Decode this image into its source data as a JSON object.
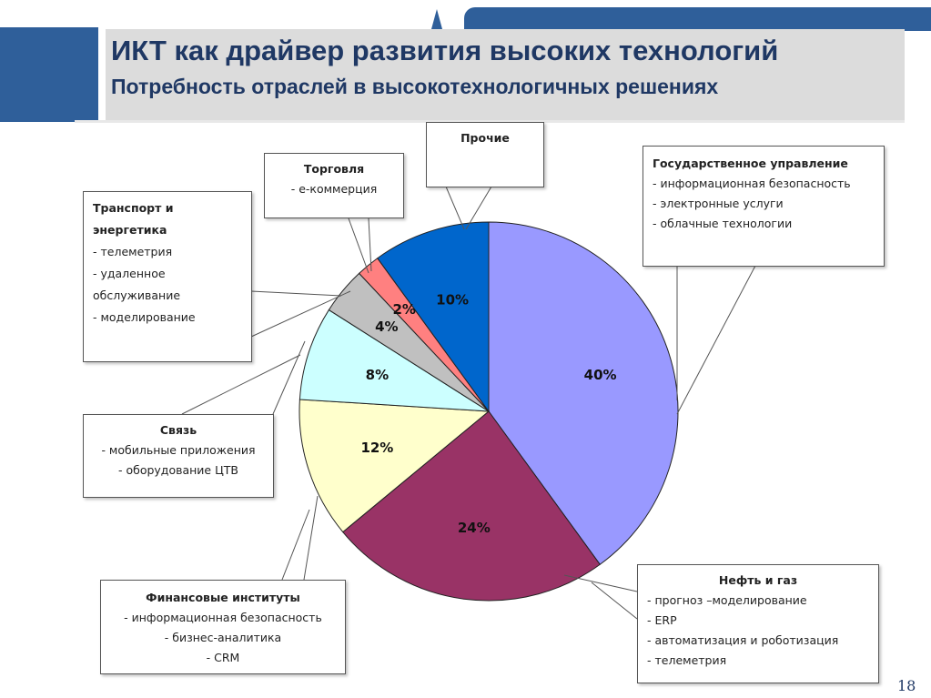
{
  "header": {
    "title": "ИКТ как  драйвер развития высоких технологий",
    "subtitle": "Потребность отраслей в высокотехнологичных решениях",
    "page_number": "18"
  },
  "callouts": {
    "gov": {
      "heading": "Государственное управление",
      "items": [
        "- информационная безопасность",
        "- электронные услуги",
        "- облачные технологии"
      ]
    },
    "oil": {
      "heading": "Нефть и газ",
      "items": [
        "- прогноз –моделирование",
        "- ERP",
        "- автоматизация и роботизация",
        "- телеметрия"
      ]
    },
    "fin": {
      "heading": "Финансовые институты",
      "items": [
        "- информационная безопасность",
        "- бизнес-аналитика",
        "- CRM"
      ]
    },
    "comm": {
      "heading": "Связь",
      "items": [
        "- мобильные приложения",
        "- оборудование ЦТВ"
      ]
    },
    "transport": {
      "heading_line1": "Транспорт и",
      "heading_line2": "энергетика",
      "items": [
        "- телеметрия",
        "- удаленное",
        "обслуживание",
        "- моделирование"
      ]
    },
    "trade": {
      "heading": "Торговля",
      "items": [
        "- е-коммерция"
      ]
    },
    "other": {
      "heading": "Прочие"
    }
  },
  "chart_data": {
    "type": "pie",
    "title": "",
    "slices": [
      {
        "label": "40%",
        "value": 40,
        "color": "#9999ff"
      },
      {
        "label": "24%",
        "value": 24,
        "color": "#993366"
      },
      {
        "label": "12%",
        "value": 12,
        "color": "#ffffcc"
      },
      {
        "label": "8%",
        "value": 8,
        "color": "#ccffff"
      },
      {
        "label": "4%",
        "value": 4,
        "color": "#c0c0c0"
      },
      {
        "label": "2%",
        "value": 2,
        "color": "#ff8080"
      },
      {
        "label": "10%",
        "value": 10,
        "color": "#0066cc"
      }
    ]
  }
}
